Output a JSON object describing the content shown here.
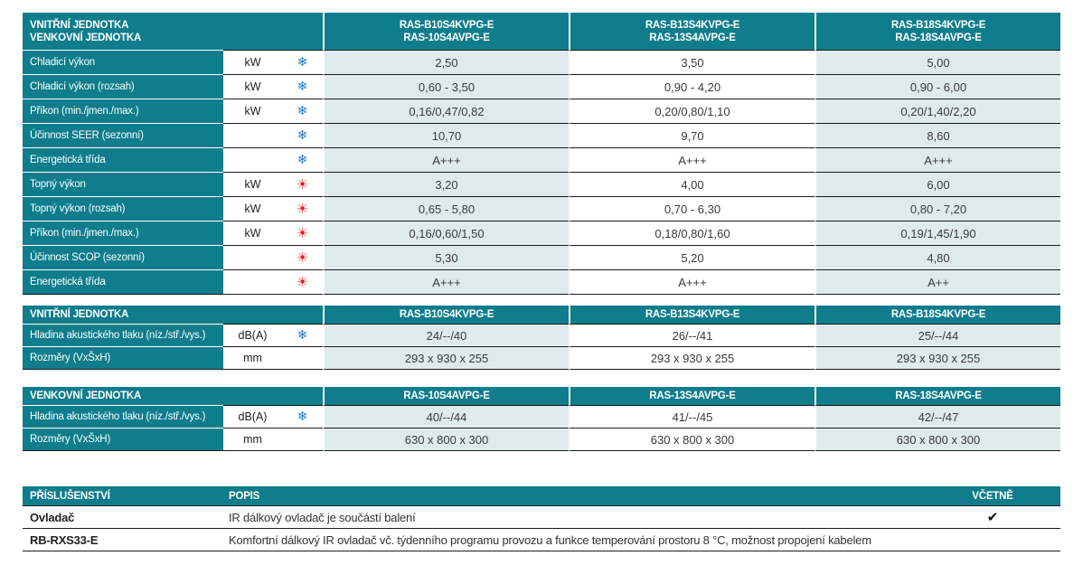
{
  "colors": {
    "teal": "#0F7D8C",
    "light_cell": "#DFEAEB",
    "line_dark": "#1A1A1A",
    "snowflake_blue": "#2579BE",
    "sun_red": "#E11B22",
    "text_dark": "#3A3A3A"
  },
  "icons": {
    "snowflake": "❄",
    "sun": "☀",
    "check": "✔"
  },
  "spec_tables": [
    {
      "name": "combined-unit-specs",
      "header_label_lines": [
        "VNITŘNÍ JEDNOTKA",
        "VENKOVNÍ JEDNOTKA"
      ],
      "model_columns": [
        [
          "RAS-B10S4KVPG-E",
          "RAS-10S4AVPG-E"
        ],
        [
          "RAS-B13S4KVPG-E",
          "RAS-13S4AVPG-E"
        ],
        [
          "RAS-B18S4KVPG-E",
          "RAS-18S4AVPG-E"
        ]
      ],
      "rows": [
        {
          "label": "Chladicí výkon",
          "unit": "kW",
          "icon": "snowflake",
          "values": [
            "2,50",
            "3,50",
            "5,00"
          ]
        },
        {
          "label": "Chladicí výkon (rozsah)",
          "unit": "kW",
          "icon": "snowflake",
          "values": [
            "0,60 - 3,50",
            "0,90 - 4,20",
            "0,90 - 6,00"
          ]
        },
        {
          "label": "Příkon (min./jmen./max.)",
          "unit": "kW",
          "icon": "snowflake",
          "values": [
            "0,16/0,47/0,82",
            "0,20/0,80/1,10",
            "0,20/1,40/2,20"
          ]
        },
        {
          "label": "Účinnost SEER (sezonní)",
          "unit": "",
          "icon": "snowflake",
          "values": [
            "10,70",
            "9,70",
            "8,60"
          ]
        },
        {
          "label": "Energetická třída",
          "unit": "",
          "icon": "snowflake",
          "values": [
            "A+++",
            "A+++",
            "A+++"
          ]
        },
        {
          "label": "Topný výkon",
          "unit": "kW",
          "icon": "sun",
          "values": [
            "3,20",
            "4,00",
            "6,00"
          ]
        },
        {
          "label": "Topný výkon (rozsah)",
          "unit": "kW",
          "icon": "sun",
          "values": [
            "0,65 - 5,80",
            "0,70 - 6,30",
            "0,80 - 7,20"
          ]
        },
        {
          "label": "Příkon (min./jmen./max.)",
          "unit": "kW",
          "icon": "sun",
          "values": [
            "0,16/0,60/1,50",
            "0,18/0,80/1,60",
            "0,19/1,45/1,90"
          ]
        },
        {
          "label": "Účinnost SCOP (sezonní)",
          "unit": "",
          "icon": "sun",
          "values": [
            "5,30",
            "5,20",
            "4,80"
          ]
        },
        {
          "label": "Energetická třída",
          "unit": "",
          "icon": "sun",
          "values": [
            "A+++",
            "A+++",
            "A++"
          ]
        }
      ]
    },
    {
      "name": "indoor-unit-specs",
      "header_label_lines": [
        "VNITŘNÍ JEDNOTKA"
      ],
      "model_columns": [
        [
          "RAS-B10S4KVPG-E"
        ],
        [
          "RAS-B13S4KVPG-E"
        ],
        [
          "RAS-B18S4KVPG-E"
        ]
      ],
      "rows": [
        {
          "label": "Hladina akustického tlaku (níz./stř./vys.)",
          "unit": "dB(A)",
          "icon": "snowflake",
          "values": [
            "24/--/40",
            "26/--/41",
            "25/--/44"
          ]
        },
        {
          "label": "Rozměry (VxŠxH)",
          "unit": "mm",
          "icon": "",
          "values": [
            "293 x 930 x 255",
            "293 x 930 x 255",
            "293 x 930 x 255"
          ]
        }
      ]
    },
    {
      "name": "outdoor-unit-specs",
      "header_label_lines": [
        "VENKOVNÍ JEDNOTKA"
      ],
      "model_columns": [
        [
          "RAS-10S4AVPG-E"
        ],
        [
          "RAS-13S4AVPG-E"
        ],
        [
          "RAS-18S4AVPG-E"
        ]
      ],
      "rows": [
        {
          "label": "Hladina akustického tlaku (níz./stř./vys.)",
          "unit": "dB(A)",
          "icon": "snowflake",
          "values": [
            "40/--/44",
            "41/--/45",
            "42/--/47"
          ]
        },
        {
          "label": "Rozměry (VxŠxH)",
          "unit": "mm",
          "icon": "",
          "values": [
            "630 x 800 x 300",
            "630 x 800 x 300",
            "630 x 800 x 300"
          ]
        }
      ]
    }
  ],
  "accessories": {
    "headers": {
      "name": "PŘÍSLUŠENSTVÍ",
      "description": "POPIS",
      "included": "VČETNĚ"
    },
    "rows": [
      {
        "name": "Ovladač",
        "description": "IR dálkový ovladač je součástí balení",
        "included": true
      },
      {
        "name": "RB-RXS33-E",
        "description": "Komfortní dálkový IR ovladač vč. týdenního programu provozu a funkce temperování prostoru 8 °C, možnost propojení kabelem",
        "included": false
      }
    ]
  }
}
